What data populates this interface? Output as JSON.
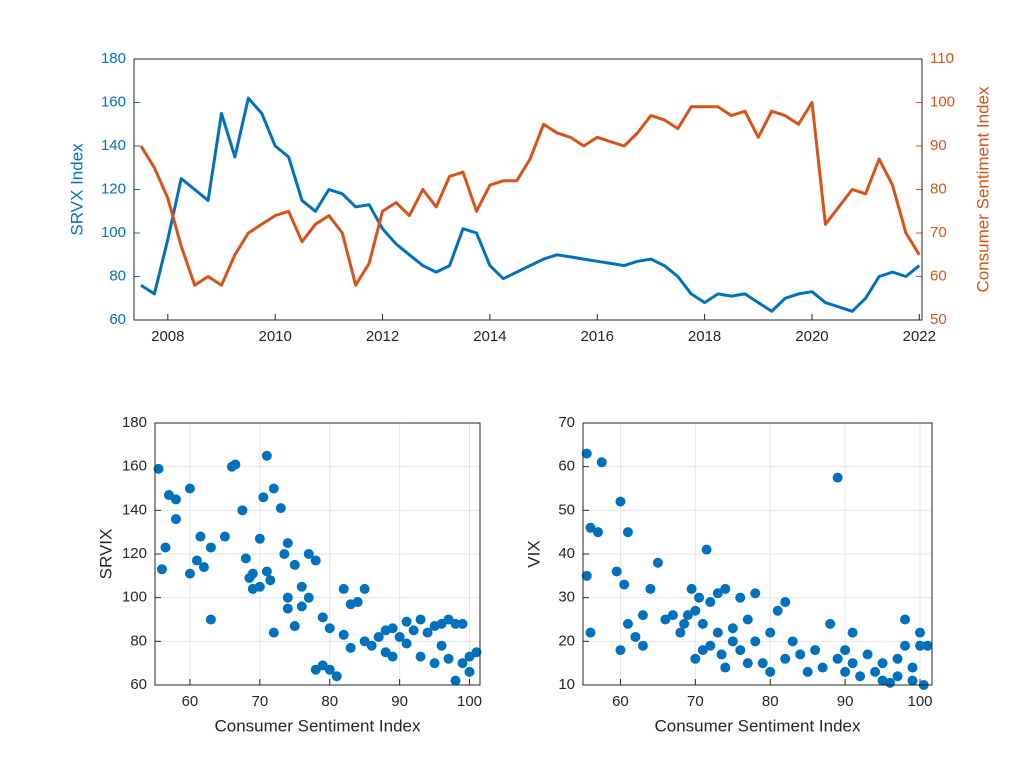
{
  "chart_data": [
    {
      "type": "line",
      "ylabel": "SRVX Index",
      "y2label": "Consumer Sentiment Index",
      "x": [
        2007.5,
        2007.75,
        2008.0,
        2008.25,
        2008.5,
        2008.75,
        2009.0,
        2009.25,
        2009.5,
        2009.75,
        2010.0,
        2010.25,
        2010.5,
        2010.75,
        2011.0,
        2011.25,
        2011.5,
        2011.75,
        2012.0,
        2012.25,
        2012.5,
        2012.75,
        2013.0,
        2013.25,
        2013.5,
        2013.75,
        2014.0,
        2014.25,
        2014.5,
        2014.75,
        2015.0,
        2015.25,
        2015.5,
        2015.75,
        2016.0,
        2016.25,
        2016.5,
        2016.75,
        2017.0,
        2017.25,
        2017.5,
        2017.75,
        2018.0,
        2018.25,
        2018.5,
        2018.75,
        2019.0,
        2019.25,
        2019.5,
        2019.75,
        2020.0,
        2020.25,
        2020.5,
        2020.75,
        2021.0,
        2021.25,
        2021.5,
        2021.75,
        2022.0
      ],
      "series": [
        {
          "name": "SRVX Index",
          "color": "#0072BD",
          "axis": "y",
          "values": [
            76,
            72,
            97,
            125,
            120,
            115,
            155,
            135,
            162,
            155,
            140,
            135,
            115,
            110,
            120,
            118,
            112,
            113,
            102,
            95,
            90,
            85,
            82,
            85,
            102,
            100,
            85,
            79,
            82,
            85,
            88,
            90,
            89,
            88,
            87,
            86,
            85,
            87,
            88,
            85,
            80,
            72,
            68,
            72,
            71,
            72,
            68,
            64,
            70,
            72,
            73,
            68,
            66,
            64,
            70,
            80,
            82,
            80,
            85
          ]
        },
        {
          "name": "Consumer Sentiment Index",
          "color": "#D95319",
          "axis": "y2",
          "values": [
            90,
            85,
            78,
            67,
            58,
            60,
            58,
            65,
            70,
            72,
            74,
            75,
            68,
            72,
            74,
            70,
            58,
            63,
            75,
            77,
            74,
            80,
            76,
            83,
            84,
            75,
            81,
            82,
            82,
            87,
            95,
            93,
            92,
            90,
            92,
            91,
            90,
            93,
            97,
            96,
            94,
            99,
            99,
            99,
            97,
            98,
            92,
            98,
            97,
            95,
            100,
            72,
            76,
            80,
            79,
            87,
            81,
            70,
            65
          ]
        }
      ],
      "xlim": [
        2007.37,
        2022.05
      ],
      "xticks": [
        2008,
        2010,
        2012,
        2014,
        2016,
        2018,
        2020,
        2022
      ],
      "ylim": [
        60,
        180
      ],
      "yticks": [
        60,
        80,
        100,
        120,
        140,
        160,
        180
      ],
      "y2lim": [
        50,
        110
      ],
      "y2ticks": [
        50,
        60,
        70,
        80,
        90,
        100,
        110
      ],
      "grid": false
    },
    {
      "type": "scatter",
      "xlabel": "Consumer Sentiment Index",
      "ylabel": "SRVIX",
      "color": "#0072BD",
      "x": [
        55.5,
        56,
        56.5,
        57,
        58,
        58,
        60,
        60,
        61,
        61.5,
        62,
        63,
        63,
        65,
        66,
        66.5,
        67.5,
        68,
        68.5,
        69,
        69,
        70,
        70,
        70.5,
        71,
        71,
        71.5,
        72,
        72,
        73,
        73.5,
        74,
        74,
        74,
        75,
        75,
        76,
        76,
        77,
        77,
        78,
        78,
        79,
        79,
        80,
        80,
        81,
        82,
        82,
        83,
        83,
        84,
        85,
        85,
        86,
        87,
        88,
        88,
        89,
        89,
        90,
        91,
        91,
        92,
        93,
        93,
        94,
        95,
        95,
        96,
        96,
        97,
        97,
        98,
        98,
        99,
        100,
        100,
        101,
        99
      ],
      "values": [
        159,
        113,
        123,
        147,
        145,
        136,
        150,
        111,
        117,
        128,
        114,
        123,
        90,
        128,
        160,
        161,
        140,
        118,
        109,
        111,
        104,
        105,
        127,
        146,
        165,
        112,
        108,
        150,
        84,
        141,
        120,
        125,
        100,
        95,
        115,
        87,
        105,
        96,
        100,
        120,
        117,
        67,
        91,
        69,
        86,
        67,
        64,
        104,
        83,
        97,
        77,
        98,
        104,
        80,
        78,
        82,
        85,
        75,
        73,
        86,
        82,
        89,
        79,
        85,
        90,
        73,
        84,
        70,
        87,
        88,
        78,
        90,
        72,
        62,
        88,
        70,
        66,
        73,
        75,
        88
      ],
      "xlim": [
        55,
        101.5
      ],
      "xticks": [
        60,
        70,
        80,
        90,
        100
      ],
      "ylim": [
        60,
        180
      ],
      "yticks": [
        60,
        80,
        100,
        120,
        140,
        160,
        180
      ],
      "grid": true
    },
    {
      "type": "scatter",
      "xlabel": "Consumer Sentiment Index",
      "ylabel": "VIX",
      "color": "#0072BD",
      "x": [
        55.5,
        55.5,
        56,
        56,
        57,
        57.5,
        59.5,
        60,
        60,
        60.5,
        61,
        61,
        62,
        63,
        63,
        64,
        65,
        66,
        67,
        68,
        68.5,
        69,
        69.5,
        70,
        70,
        70.5,
        71,
        71,
        71.5,
        72,
        72,
        73,
        73,
        73.5,
        74,
        74,
        75,
        75,
        76,
        76,
        77,
        77,
        78,
        78,
        79,
        80,
        80,
        81,
        82,
        82,
        83,
        84,
        85,
        86,
        87,
        88,
        89,
        89,
        90,
        90,
        91,
        91,
        92,
        93,
        94,
        95,
        95,
        96,
        97,
        98,
        98,
        99,
        99,
        100,
        100,
        100.5,
        101,
        97
      ],
      "values": [
        63,
        35,
        22,
        46,
        45,
        61,
        36,
        52,
        18,
        33,
        45,
        24,
        21,
        26,
        19,
        32,
        38,
        25,
        26,
        22,
        24,
        26,
        32,
        27,
        16,
        30,
        24,
        18,
        41,
        19,
        29,
        31,
        22,
        17,
        32,
        14,
        20,
        23,
        18,
        30,
        25,
        15,
        31,
        20,
        15,
        22,
        13,
        27,
        29,
        16,
        20,
        17,
        13,
        18,
        14,
        24,
        57.5,
        16,
        18,
        13,
        22,
        15,
        12,
        17,
        13,
        15,
        11,
        10.5,
        12,
        19,
        25,
        14,
        11,
        19,
        22,
        10,
        19,
        16
      ],
      "xlim": [
        55,
        101.6
      ],
      "xticks": [
        60,
        70,
        80,
        90,
        100
      ],
      "ylim": [
        10,
        70
      ],
      "yticks": [
        10,
        20,
        30,
        40,
        50,
        60,
        70
      ],
      "grid": true
    }
  ]
}
